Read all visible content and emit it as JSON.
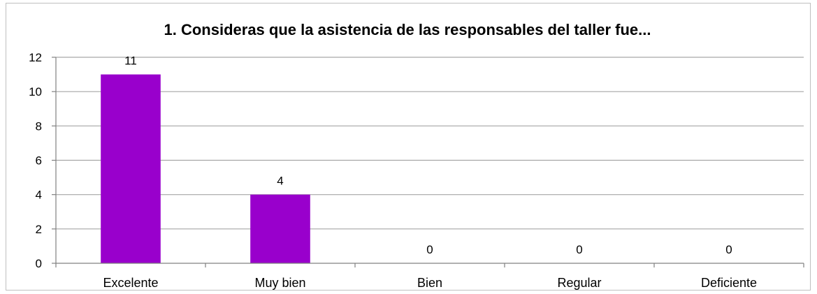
{
  "chart_data": {
    "type": "bar",
    "title": "1. Consideras  que la asistencia de las responsables  del taller fue...",
    "xlabel": "",
    "ylabel": "",
    "categories": [
      "Excelente",
      "Muy bien",
      "Bien",
      "Regular",
      "Deficiente"
    ],
    "values": [
      11,
      4,
      0,
      0,
      0
    ],
    "data_labels": [
      "11",
      "4",
      "0",
      "0",
      "0"
    ],
    "ylim": [
      0,
      12
    ],
    "yticks": [
      0,
      2,
      4,
      6,
      8,
      10,
      12
    ],
    "grid": true,
    "legend": "none",
    "bar_color": "#9900cc"
  }
}
